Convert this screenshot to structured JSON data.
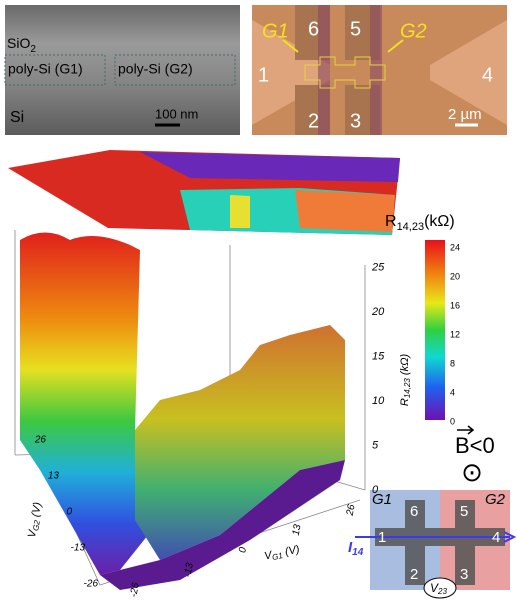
{
  "panel_a": {
    "layer_top": {
      "main": "SiO",
      "sub": "2"
    },
    "gate_left": "poly-Si (G1)",
    "gate_right": "poly-Si (G2)",
    "substrate": "Si",
    "scale_bar": "100 nm"
  },
  "panel_b": {
    "gate_left": "G1",
    "gate_right": "G2",
    "contacts": [
      "1",
      "2",
      "3",
      "4",
      "5",
      "6"
    ],
    "scale_bar": "2 µm"
  },
  "surface_plot": {
    "z_label": {
      "main": "R",
      "sub": "14,23",
      "unit": " (kΩ)"
    },
    "z_ticks": [
      "0",
      "5",
      "10",
      "15",
      "20",
      "25"
    ],
    "y_label": {
      "main": "V",
      "sub": "G2",
      "unit": " (V)"
    },
    "y_ticks": [
      "26",
      "13",
      "0",
      "-13",
      "-26"
    ],
    "x_label": {
      "main": "V",
      "sub": "G1",
      "unit": " (V)"
    },
    "x_ticks": [
      "-26",
      "-13",
      "0",
      "13",
      "26"
    ],
    "colorbar": {
      "title": {
        "main": "R",
        "sub": "14,23",
        "unit": "(kΩ)"
      },
      "ticks": [
        "24",
        "20",
        "16",
        "12",
        "8",
        "4",
        "0"
      ]
    }
  },
  "field": {
    "label": "B<0",
    "symbol": "⊙"
  },
  "schematic": {
    "gate_left": "G1",
    "gate_right": "G2",
    "current": {
      "main": "I",
      "sub": "14"
    },
    "voltage": {
      "main": "V",
      "sub": "23"
    },
    "contacts": [
      "1",
      "2",
      "3",
      "4",
      "5",
      "6"
    ]
  }
}
